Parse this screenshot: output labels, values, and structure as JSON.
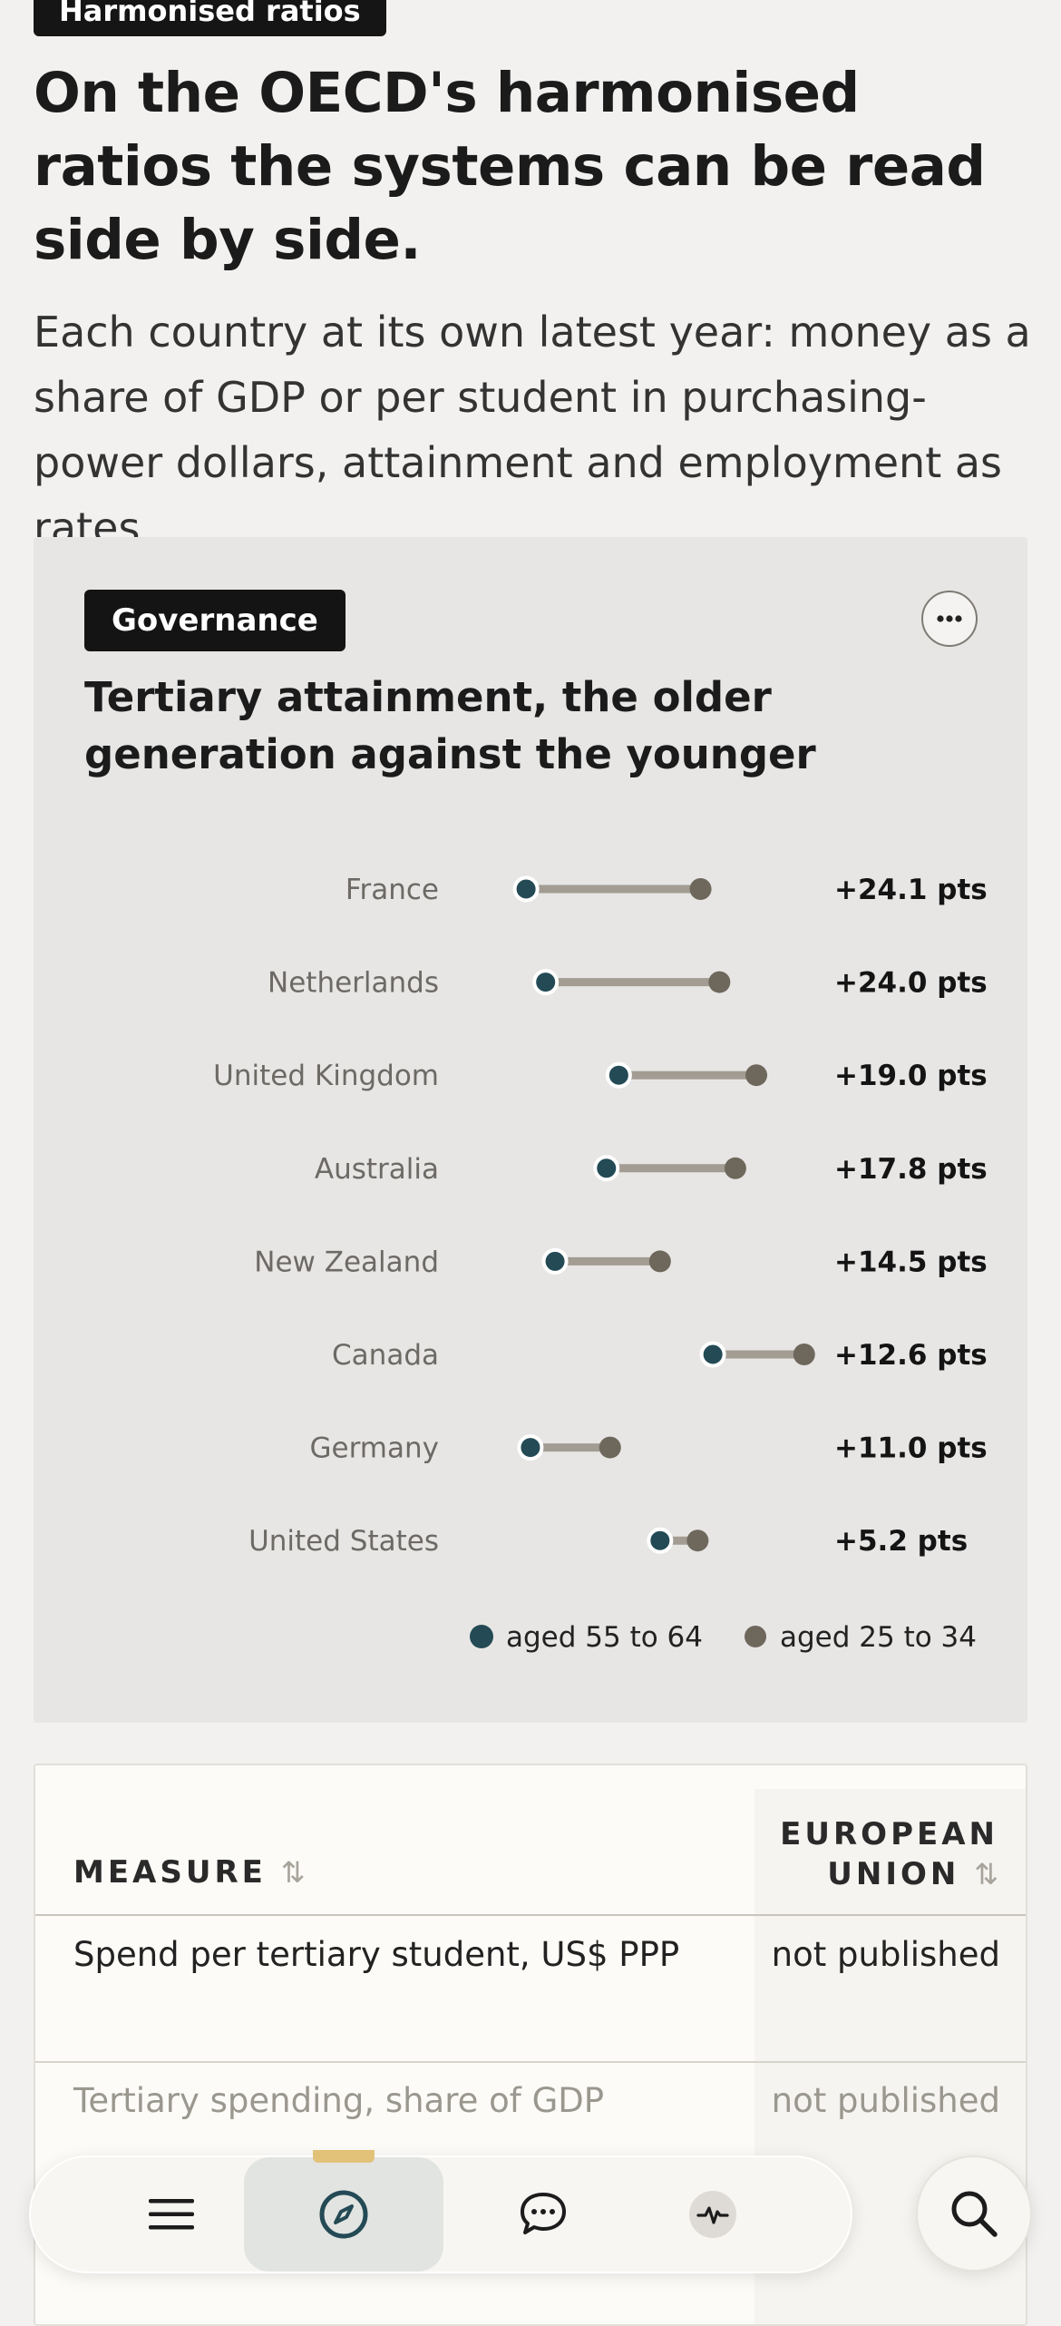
{
  "article": {
    "eyebrow": "Harmonised ratios",
    "headline": "On the OECD's harmonised ratios the systems can be read side by side.",
    "lede": "Each country at its own latest year: money as a share of GDP or per student in purchasing-power dollars, attainment and employment as rates."
  },
  "chart_card": {
    "tag": "Governance",
    "title": "Tertiary attainment, the older generation against the younger",
    "more_icon": "ellipsis-icon"
  },
  "chart_data": {
    "type": "dumbbell",
    "series": [
      {
        "name": "aged 55 to 64",
        "color": "#234a55"
      },
      {
        "name": "aged 25 to 34",
        "color": "#6e675c"
      }
    ],
    "rows": [
      {
        "country": "France",
        "older": 24.9,
        "younger": 49.0,
        "label": "+24.1 pts"
      },
      {
        "country": "Netherlands",
        "older": 27.6,
        "younger": 51.6,
        "label": "+24.0 pts"
      },
      {
        "country": "United Kingdom",
        "older": 37.7,
        "younger": 56.7,
        "label": "+19.0 pts"
      },
      {
        "country": "Australia",
        "older": 36.0,
        "younger": 53.8,
        "label": "+17.8 pts"
      },
      {
        "country": "New Zealand",
        "older": 28.9,
        "younger": 43.4,
        "label": "+14.5 pts"
      },
      {
        "country": "Canada",
        "older": 50.7,
        "younger": 63.3,
        "label": "+12.6 pts"
      },
      {
        "country": "Germany",
        "older": 25.5,
        "younger": 36.5,
        "label": "+11.0 pts"
      },
      {
        "country": "United States",
        "older": 43.4,
        "younger": 48.6,
        "label": "+5.2 pts"
      }
    ],
    "legend": [
      "aged 55 to 64",
      "aged 25 to 34"
    ],
    "legend_position": "bottom-right",
    "grid": false
  },
  "table": {
    "headers": {
      "measure": "MEASURE",
      "eu_line1": "EUROPEAN",
      "eu_line2": "UNION"
    },
    "sort_icon": "sort-arrows-icon",
    "rows": [
      {
        "measure": "Spend per tertiary student, US$ PPP",
        "eu": "not published"
      },
      {
        "measure": "Tertiary spending, share of GDP",
        "eu": "not published"
      }
    ]
  },
  "nav": {
    "items": [
      {
        "icon": "menu-icon"
      },
      {
        "icon": "compass-icon",
        "active": true
      },
      {
        "icon": "chat-bubble-icon"
      },
      {
        "icon": "activity-pulse-icon"
      }
    ],
    "search_icon": "search-icon"
  },
  "colors": {
    "older": "#234a55",
    "younger": "#6e675c",
    "connector": "#a29c92",
    "accent": "#e2c279"
  }
}
